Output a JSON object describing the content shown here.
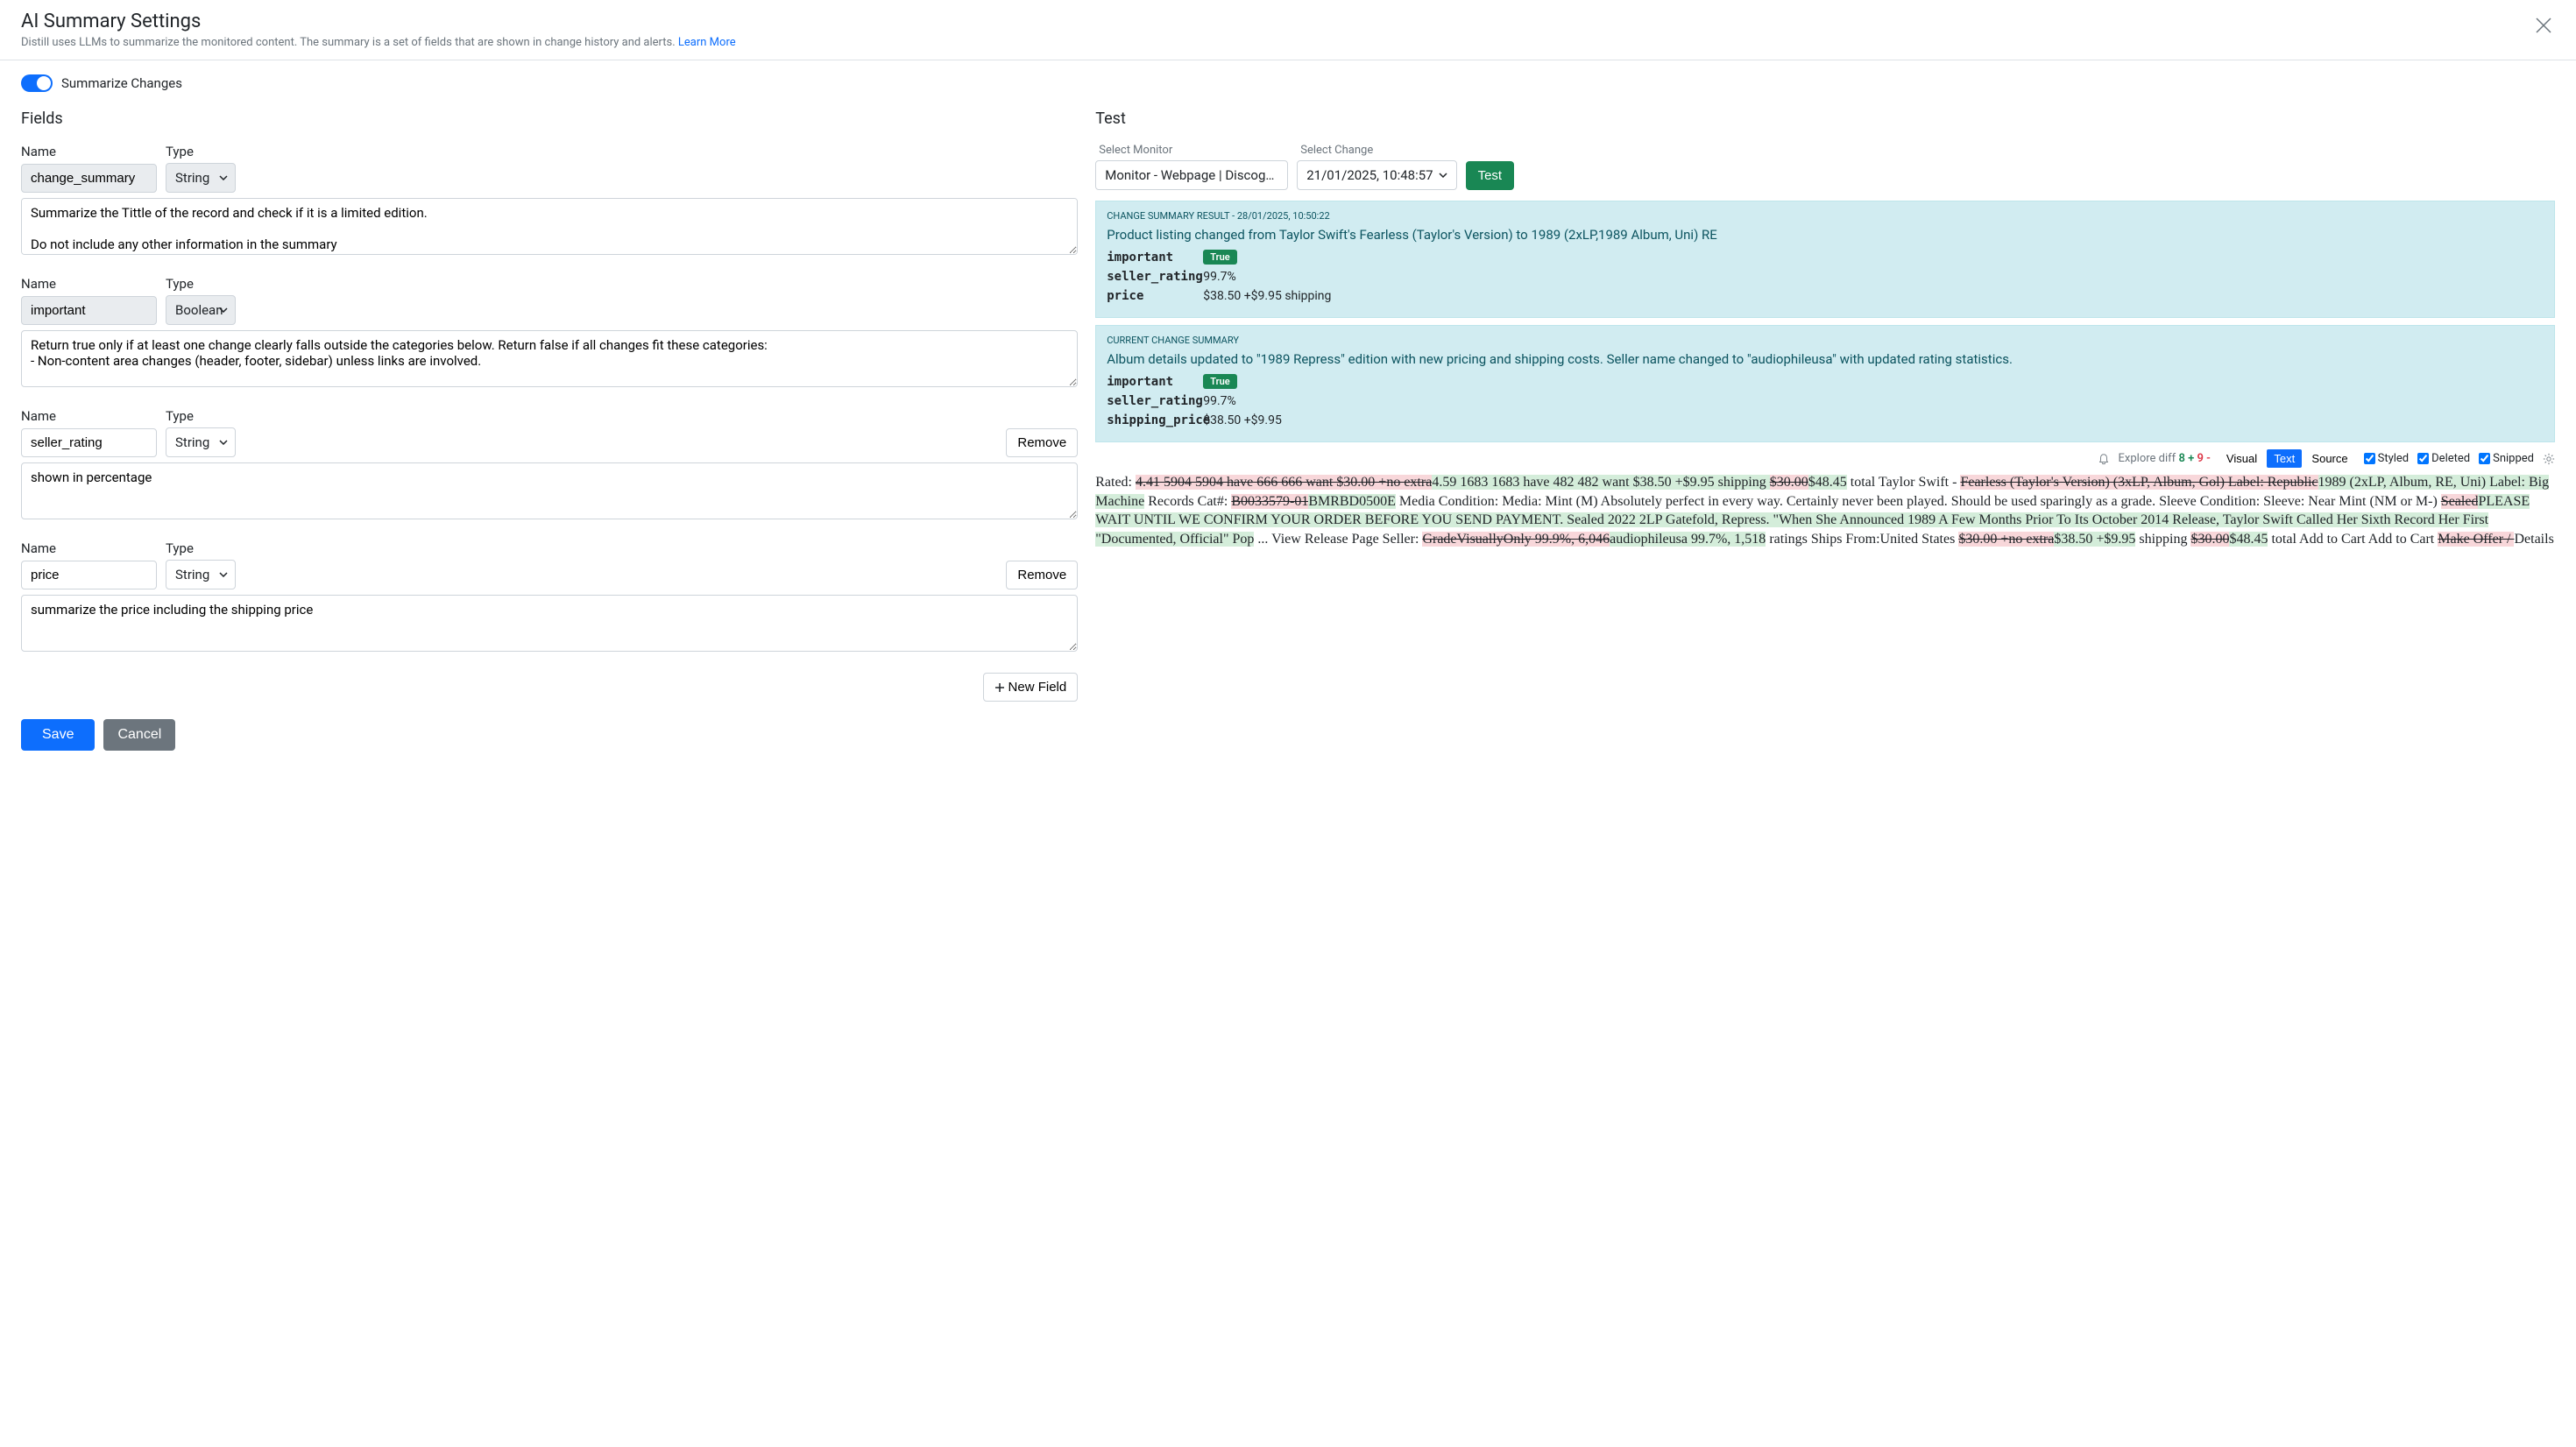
{
  "header": {
    "title": "AI Summary Settings",
    "subtitle_prefix": "Distill uses LLMs to summarize the monitored content. The summary is a set of fields that are shown in change history and alerts. ",
    "learn_more": "Learn More"
  },
  "toggle": {
    "label": "Summarize Changes"
  },
  "fields_section_title": "Fields",
  "labels": {
    "name": "Name",
    "type": "Type",
    "remove": "Remove",
    "new_field": "New Field",
    "save": "Save",
    "cancel": "Cancel"
  },
  "fields": [
    {
      "name": "change_summary",
      "type": "String",
      "editable": false,
      "removable": false,
      "desc": "Summarize the Tittle of the record and check if it is a limited edition.\n\nDo not include any other information in the summary"
    },
    {
      "name": "important",
      "type": "Boolean",
      "editable": false,
      "removable": false,
      "desc": "Return true only if at least one change clearly falls outside the categories below. Return false if all changes fit these categories:\n- Non-content area changes (header, footer, sidebar) unless links are involved."
    },
    {
      "name": "seller_rating",
      "type": "String",
      "editable": true,
      "removable": true,
      "desc": "shown in percentage"
    },
    {
      "name": "price",
      "type": "String",
      "editable": true,
      "removable": true,
      "desc": "summarize the price including the shipping price"
    }
  ],
  "test": {
    "title": "Test",
    "select_monitor_label": "Select Monitor",
    "select_monitor_value": "Monitor - Webpage | Discogs.com |…",
    "select_change_label": "Select Change",
    "select_change_value": "21/01/2025, 10:48:57",
    "test_btn": "Test"
  },
  "result1": {
    "header_text": "CHANGE SUMMARY RESULT",
    "timestamp": "- 28/01/2025, 10:50:22",
    "summary": "Product listing changed from Taylor Swift's Fearless (Taylor's Version) to 1989 (2xLP,1989 Album, Uni) RE",
    "rows": [
      {
        "key": "important",
        "val": "True",
        "badge": true
      },
      {
        "key": "seller_rating",
        "val": "99.7%"
      },
      {
        "key": "price",
        "val": "$38.50 +$9.95 shipping"
      }
    ]
  },
  "result2": {
    "header_text": "CURRENT CHANGE SUMMARY",
    "summary": "Album details updated to \"1989 Repress\" edition with new pricing and shipping costs. Seller name changed to \"audiophileusa\" with updated rating statistics.",
    "rows": [
      {
        "key": "important",
        "val": "True",
        "badge": true
      },
      {
        "key": "seller_rating",
        "val": "99.7%"
      },
      {
        "key": "shipping_price",
        "val": "$38.50 +$9.95"
      }
    ]
  },
  "diff_toolbar": {
    "explore": "Explore diff",
    "add_count": "8 +",
    "del_count": "9 -",
    "visual": "Visual",
    "text": "Text",
    "source": "Source",
    "styled": "Styled",
    "deleted": "Deleted",
    "snipped": "Snipped"
  },
  "diff": {
    "p1_a": "Rated: ",
    "p1_b": "4.41 5904 5904 have 666 666 want $30.00 +no extra",
    "p1_c": "4.59 1683 1683 have 482 482 want $38.50 +$9.95 shipping ",
    "p1_d": "$30.00",
    "p1_e": "$48.45",
    "p1_f": " total Taylor Swift - ",
    "p1_g": "Fearless (Taylor's Version) (3xLP, Album, Gol) Label: Republic",
    "p1_h": "1989 (2xLP, Album, RE, Uni) Label: Big Machine",
    "p1_i": " Records Cat#: ",
    "p1_j": "B0033579-01",
    "p1_k": "BMRBD0500E",
    "p1_l": " Media Condition: Media: Mint (M) Absolutely perfect in every way. Certainly never been played. Should be used sparingly as a grade. Sleeve Condition: Sleeve: Near Mint (NM or M-) ",
    "p1_m": "Sealed",
    "p1_n": "PLEASE WAIT UNTIL WE CONFIRM YOUR ORDER BEFORE YOU SEND PAYMENT. Sealed 2022 2LP Gatefold, Repress. \"When She Announced 1989 A Few Months Prior To Its October 2014 Release, Taylor Swift Called Her Sixth Record Her First \"Documented, Official\" Pop",
    "p1_o": " ... View Release Page Seller: ",
    "p1_p": "GradeVisuallyOnly 99.9%, 6,046",
    "p1_q": "audiophileusa 99.7%, 1,518",
    "p1_r": " ratings Ships From:United States ",
    "p1_s": "$30.00 +no extra",
    "p1_t": "$38.50 +$9.95",
    "p1_u": " shipping ",
    "p1_v": "$30.00",
    "p1_w": "$48.45",
    "p1_x": " total Add to Cart Add to Cart ",
    "p1_y": "Make Offer / ",
    "p1_z": "Details"
  },
  "colors": {
    "blue_primary": "#0d6efd",
    "green_success": "#198754",
    "info_bg": "#d1ecf1",
    "diff_add_bg": "#d4edda",
    "diff_del_bg": "#f8d7da"
  }
}
